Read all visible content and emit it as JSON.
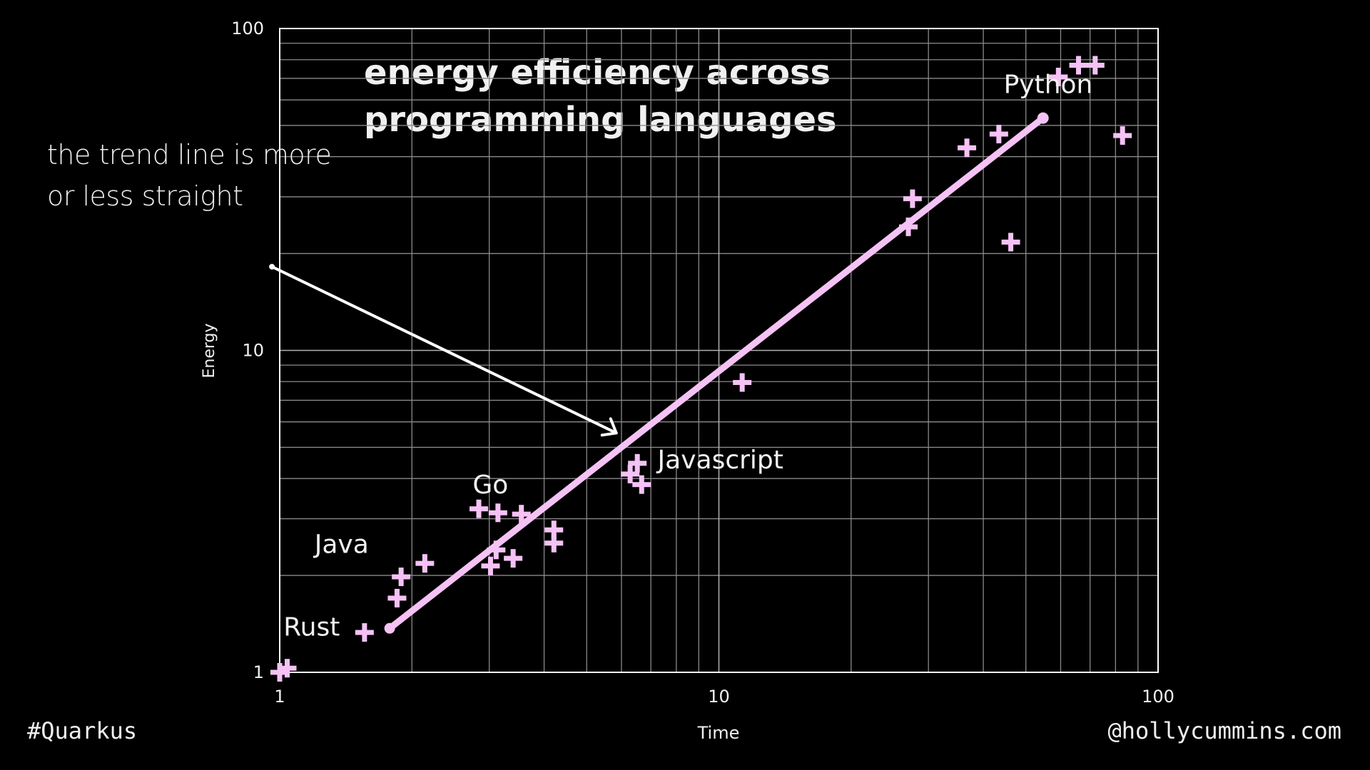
{
  "slide": {
    "annotation_line1": "the trend line is more",
    "annotation_line2": "or less straight",
    "hashtag": "#Quarkus",
    "handle": "@hollycummins.com"
  },
  "colors": {
    "background": "#000000",
    "marker": "#f5c2f5",
    "trend": "#f5c2f5",
    "grid": "#8a8a8a",
    "axis": "#ffffff",
    "text": "#f2f2f2"
  },
  "chart_data": {
    "type": "scatter",
    "title": "energy efficiency across programming languages",
    "title_lines": [
      "energy efficiency across",
      "programming languages"
    ],
    "xlabel": "Time",
    "ylabel": "Energy",
    "xscale": "log",
    "yscale": "log",
    "xlim": [
      1,
      100
    ],
    "ylim": [
      1,
      100
    ],
    "xticks": [
      1,
      10,
      100
    ],
    "xtick_labels": [
      "1",
      "10",
      "100"
    ],
    "yticks": [
      1,
      10,
      100
    ],
    "ytick_labels": [
      "1",
      "10",
      "100"
    ],
    "grid": true,
    "marker": "plus",
    "points": [
      {
        "x": 1.0,
        "y": 1.0
      },
      {
        "x": 1.04,
        "y": 1.03
      },
      {
        "x": 1.56,
        "y": 1.33
      },
      {
        "x": 1.85,
        "y": 1.7
      },
      {
        "x": 1.89,
        "y": 1.98
      },
      {
        "x": 2.14,
        "y": 2.18
      },
      {
        "x": 2.84,
        "y": 3.22
      },
      {
        "x": 3.14,
        "y": 3.13
      },
      {
        "x": 3.55,
        "y": 3.1
      },
      {
        "x": 3.02,
        "y": 2.14
      },
      {
        "x": 3.11,
        "y": 2.4
      },
      {
        "x": 3.4,
        "y": 2.26
      },
      {
        "x": 4.21,
        "y": 2.77
      },
      {
        "x": 4.21,
        "y": 2.52
      },
      {
        "x": 6.52,
        "y": 4.46
      },
      {
        "x": 6.28,
        "y": 4.13
      },
      {
        "x": 6.67,
        "y": 3.83
      },
      {
        "x": 11.3,
        "y": 7.95
      },
      {
        "x": 27.0,
        "y": 24.2
      },
      {
        "x": 27.6,
        "y": 29.6
      },
      {
        "x": 36.7,
        "y": 42.6
      },
      {
        "x": 43.4,
        "y": 47.0
      },
      {
        "x": 46.2,
        "y": 21.7
      },
      {
        "x": 59.3,
        "y": 70.7
      },
      {
        "x": 65.9,
        "y": 76.9
      },
      {
        "x": 71.9,
        "y": 76.9
      },
      {
        "x": 83.0,
        "y": 46.5
      }
    ],
    "trend_line": {
      "x": [
        1.78,
        54.7
      ],
      "y": [
        1.37,
        52.7
      ]
    },
    "annotations": [
      {
        "text": "Rust",
        "x": 1.02,
        "y": 1.3
      },
      {
        "text": "Java",
        "x": 1.2,
        "y": 2.35
      },
      {
        "text": "Go",
        "x": 2.75,
        "y": 3.6
      },
      {
        "text": "Javascript",
        "x": 7.25,
        "y": 4.3
      },
      {
        "text": "Python",
        "x": 44.5,
        "y": 63.0
      }
    ],
    "arrow": {
      "from": {
        "x": 0.96,
        "y": 18.2
      },
      "to": {
        "x": 5.84,
        "y": 5.54
      }
    }
  }
}
